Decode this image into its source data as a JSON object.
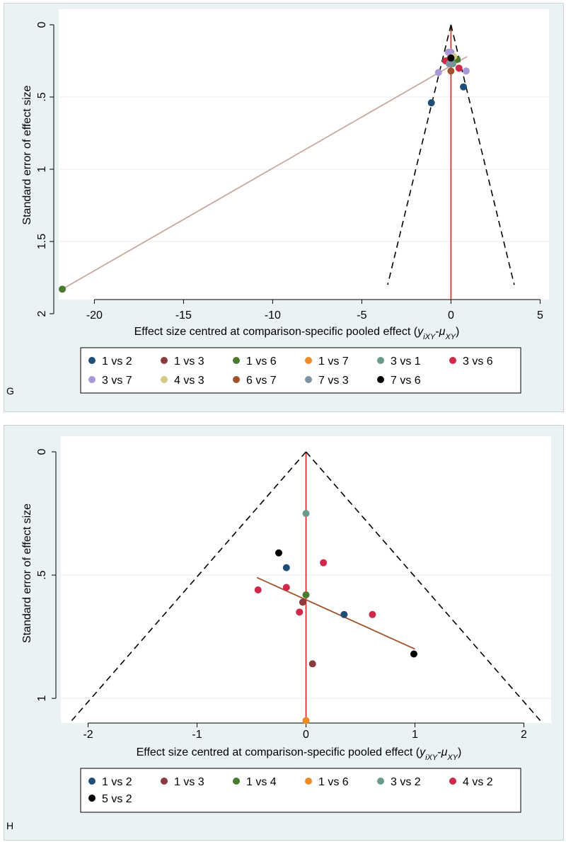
{
  "chart_data": [
    {
      "id": "G",
      "type": "scatter",
      "panel_label": "G",
      "xlabel_main": "Effect size centred at comparison-specific pooled effect (",
      "xlabel_var1": "y",
      "xlabel_sub1": "iXY",
      "xlabel_dash": "-",
      "xlabel_var2": "μ",
      "xlabel_sub2": "XY",
      "xlabel_end": ")",
      "ylabel": "Standard error of effect size",
      "xlim": [
        -22,
        5.5
      ],
      "ylim": [
        0,
        2
      ],
      "y_reversed": true,
      "xticks": [
        -20,
        -15,
        -10,
        -5,
        0,
        5
      ],
      "xtick_labels": [
        "-20",
        "-15",
        "-10",
        "-5",
        "0",
        "5"
      ],
      "yticks": [
        0,
        0.5,
        1,
        1.5,
        2
      ],
      "ytick_labels": [
        "0",
        ".5",
        "1",
        "1.5",
        "2"
      ],
      "funnel": {
        "apex": [
          0,
          0
        ],
        "left_end": [
          -3.55,
          1.8
        ],
        "right_end": [
          3.55,
          1.8
        ],
        "color": "#000000"
      },
      "zero_line_color": "#e02020",
      "fit_line": {
        "from": [
          -21.8,
          1.83
        ],
        "to": [
          0.9,
          0.22
        ],
        "color": "#c8a8a0"
      },
      "series": [
        {
          "name": "1 vs 2",
          "color": "#1f4e79",
          "points": [
            [
              -1.1,
              0.54
            ],
            [
              0.7,
              0.43
            ]
          ]
        },
        {
          "name": "1 vs 3",
          "color": "#8b3a3f",
          "points": [
            [
              0.0,
              0.25
            ]
          ]
        },
        {
          "name": "1 vs 6",
          "color": "#4a7a2e",
          "points": [
            [
              -21.8,
              1.83
            ],
            [
              0.35,
              0.24
            ]
          ]
        },
        {
          "name": "1 vs 7",
          "color": "#f08a24",
          "points": [
            [
              -0.05,
              0.23
            ]
          ]
        },
        {
          "name": "3 vs 1",
          "color": "#6b9a8a",
          "points": [
            [
              0.1,
              0.27
            ]
          ]
        },
        {
          "name": "3 vs 6",
          "color": "#d0284a",
          "points": [
            [
              -0.3,
              0.25
            ],
            [
              0.45,
              0.3
            ]
          ]
        },
        {
          "name": "3 vs 7",
          "color": "#a898d8",
          "points": [
            [
              -0.7,
              0.33
            ],
            [
              0.85,
              0.32
            ],
            [
              0.0,
              0.19
            ],
            [
              -0.15,
              0.19
            ]
          ]
        },
        {
          "name": "4 vs 3",
          "color": "#d4c88a",
          "points": [
            [
              0.15,
              0.22
            ]
          ]
        },
        {
          "name": "6 vs 7",
          "color": "#a0522d",
          "points": [
            [
              0.0,
              0.32
            ]
          ]
        },
        {
          "name": "7 vs 3",
          "color": "#7f93a4",
          "points": [
            [
              -0.1,
              0.27
            ]
          ]
        },
        {
          "name": "7 vs 6",
          "color": "#000000",
          "points": [
            [
              0.0,
              0.23
            ]
          ]
        }
      ]
    },
    {
      "id": "H",
      "type": "scatter",
      "panel_label": "H",
      "xlabel_main": "Effect size centred at comparison-specific pooled effect (",
      "xlabel_var1": "y",
      "xlabel_sub1": "iXY",
      "xlabel_dash": "-",
      "xlabel_var2": "μ",
      "xlabel_sub2": "XY",
      "xlabel_end": ")",
      "ylabel": "Standard error of effect size",
      "xlim": [
        -2.25,
        2.25
      ],
      "ylim": [
        0,
        1.1
      ],
      "y_reversed": true,
      "xticks": [
        -2,
        -1,
        0,
        1,
        2
      ],
      "xtick_labels": [
        "-2",
        "-1",
        "0",
        "1",
        "2"
      ],
      "yticks": [
        0,
        0.5,
        1
      ],
      "ytick_labels": [
        "0",
        ".5",
        "1"
      ],
      "funnel": {
        "apex": [
          0,
          0
        ],
        "left_end": [
          -2.15,
          1.09
        ],
        "right_end": [
          2.15,
          1.09
        ],
        "color": "#000000"
      },
      "zero_line_color": "#e02020",
      "fit_line": {
        "from": [
          -0.45,
          0.51
        ],
        "to": [
          1.0,
          0.8
        ],
        "color": "#a0522d"
      },
      "series": [
        {
          "name": "1 vs 2",
          "color": "#1f4e79",
          "points": [
            [
              -0.18,
              0.47
            ],
            [
              0.35,
              0.66
            ]
          ]
        },
        {
          "name": "1 vs 3",
          "color": "#8b3a3f",
          "points": [
            [
              -0.03,
              0.61
            ],
            [
              0.06,
              0.86
            ]
          ]
        },
        {
          "name": "1 vs 4",
          "color": "#4a7a2e",
          "points": [
            [
              0.0,
              0.58
            ]
          ]
        },
        {
          "name": "1 vs 6",
          "color": "#f08a24",
          "points": [
            [
              0.0,
              1.09
            ]
          ]
        },
        {
          "name": "3 vs 2",
          "color": "#6b9a8a",
          "points": [
            [
              0.0,
              0.25
            ]
          ]
        },
        {
          "name": "4 vs 2",
          "color": "#d0284a",
          "points": [
            [
              -0.44,
              0.56
            ],
            [
              -0.18,
              0.55
            ],
            [
              -0.06,
              0.65
            ],
            [
              0.16,
              0.45
            ],
            [
              0.61,
              0.66
            ]
          ]
        },
        {
          "name": "5 vs 2",
          "color": "#000000",
          "points": [
            [
              -0.25,
              0.41
            ],
            [
              0.99,
              0.82
            ]
          ]
        }
      ]
    }
  ]
}
